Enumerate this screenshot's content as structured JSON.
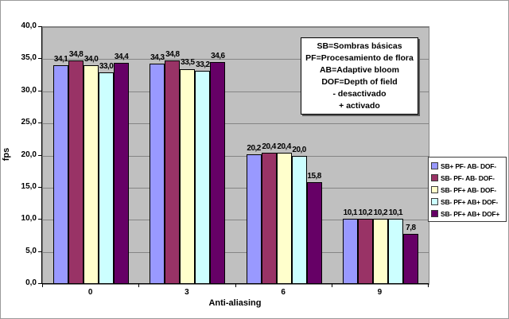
{
  "chart_data": {
    "type": "bar",
    "title": "",
    "xlabel": "Anti-aliasing",
    "ylabel": "fps",
    "categories": [
      "0",
      "3",
      "6",
      "9"
    ],
    "series": [
      {
        "name": "SB+ PF- AB- DOF-",
        "color": "#9999ff",
        "values": [
          34.1,
          34.3,
          20.2,
          10.1
        ]
      },
      {
        "name": "SB- PF- AB- DOF-",
        "color": "#993366",
        "values": [
          34.8,
          34.8,
          20.4,
          10.2
        ]
      },
      {
        "name": "SB- PF+ AB- DOF-",
        "color": "#ffffcc",
        "values": [
          34.0,
          33.5,
          20.4,
          10.2
        ]
      },
      {
        "name": "SB- PF+ AB+ DOF-",
        "color": "#ccffff",
        "values": [
          33.0,
          33.2,
          20.0,
          10.1
        ]
      },
      {
        "name": "SB- PF+ AB+ DOF+",
        "color": "#660066",
        "values": [
          34.4,
          34.6,
          15.8,
          7.8
        ]
      }
    ],
    "ylim": [
      0,
      40
    ],
    "ytick_step": 5,
    "yticks": [
      "0,0",
      "5,0",
      "10,0",
      "15,0",
      "20,0",
      "25,0",
      "30,0",
      "35,0",
      "40,0"
    ],
    "decimal_separator": ",",
    "grid": true,
    "legend_position": "right",
    "plot_background": "#c0c0c0",
    "data_labels": true
  },
  "annotation": {
    "lines": [
      "SB=Sombras básicas",
      "PF=Procesamiento de flora",
      "AB=Adaptive bloom",
      "DOF=Depth of field",
      "- desactivado",
      "+ activado"
    ]
  }
}
